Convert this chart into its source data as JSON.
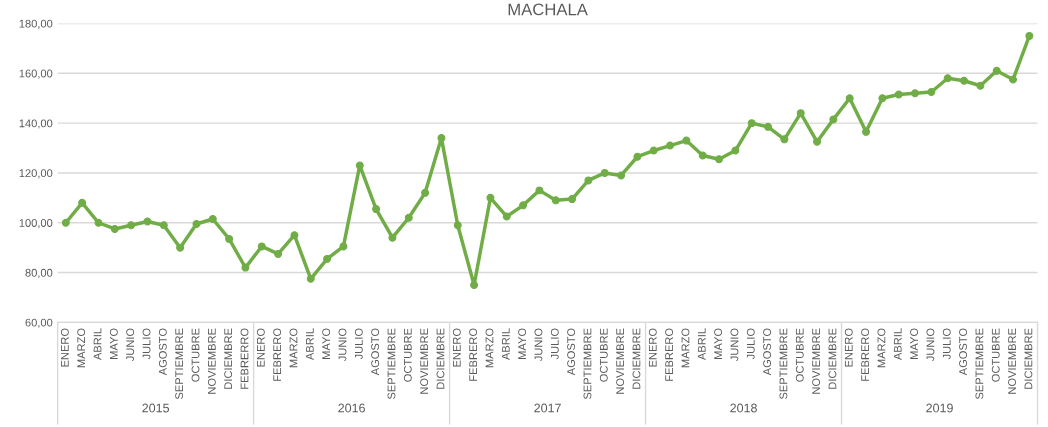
{
  "chart_data": {
    "type": "line",
    "title": "MACHALA",
    "categories": [
      "ENERO",
      "MARZO",
      "ABRIL",
      "MAYO",
      "JUNIO",
      "JULIO",
      "AGOSTO",
      "SEPTIEMBRE",
      "OCTUBRE",
      "NOVIEMBRE",
      "DICIEMBRE",
      "FEBRERRO",
      "ENERO",
      "FEBRERO",
      "MARZO",
      "ABRIL",
      "MAYO",
      "JUNIO",
      "JULIO",
      "AGOSTO",
      "SEPTIEMBRE",
      "OCTUBRE",
      "NOVIEMBRE",
      "DICIEMBRE",
      "ENERO",
      "FEBRERO",
      "MARZO",
      "ABRIL",
      "MAYO",
      "JUNIO",
      "JULIO",
      "AGOSTO",
      "SEPTIEMBRE",
      "OCTUBRE",
      "NOVIEMBRE",
      "DICIEMBRE",
      "ENERO",
      "FEBRERO",
      "MARZO",
      "ABRIL",
      "MAYO",
      "JUNIO",
      "JULIO",
      "AGOSTO",
      "SEPTIEMBRE",
      "OCTUBRE",
      "NOVIEMBRE",
      "DICIEMBRE",
      "ENERO",
      "FEBRERO",
      "MARZO",
      "ABRIL",
      "MAYO",
      "JUNIO",
      "JULIO",
      "AGOSTO",
      "SEPTIEMBRE",
      "OCTUBRE",
      "NOVIEMBRE",
      "DICIEMBRE"
    ],
    "series": [
      {
        "color": "#70ad47",
        "values": [
          100,
          108,
          100,
          97.5,
          99,
          100.5,
          99,
          90,
          99.5,
          101.5,
          93.5,
          82,
          90.5,
          87.5,
          95,
          77.5,
          85.5,
          90.5,
          123,
          105.5,
          94,
          102,
          112,
          134,
          99,
          75,
          110,
          102.5,
          107,
          113,
          109,
          109.5,
          117,
          120,
          119,
          126.5,
          129,
          131,
          133,
          127,
          125.5,
          129,
          140,
          138.5,
          133.5,
          144,
          132.5,
          141.5,
          150,
          136.5,
          150,
          151.5,
          152,
          152.5,
          158,
          157,
          155,
          161,
          157.5,
          175
        ]
      }
    ],
    "annotations": [
      "2015",
      "2016",
      "2017",
      "2018",
      "2019"
    ],
    "ylim": [
      60,
      180
    ],
    "yticks": [
      {
        "value": 60,
        "label": "60,00"
      },
      {
        "value": 80,
        "label": "80,00"
      },
      {
        "value": 100,
        "label": "100,00"
      },
      {
        "value": 120,
        "label": "120,00"
      },
      {
        "value": 140,
        "label": "140,00"
      },
      {
        "value": 160,
        "label": "160,00"
      },
      {
        "value": 180,
        "label": "180,00"
      }
    ],
    "grid": "y",
    "marker": "circle",
    "line_style": "solid",
    "legend": false
  }
}
